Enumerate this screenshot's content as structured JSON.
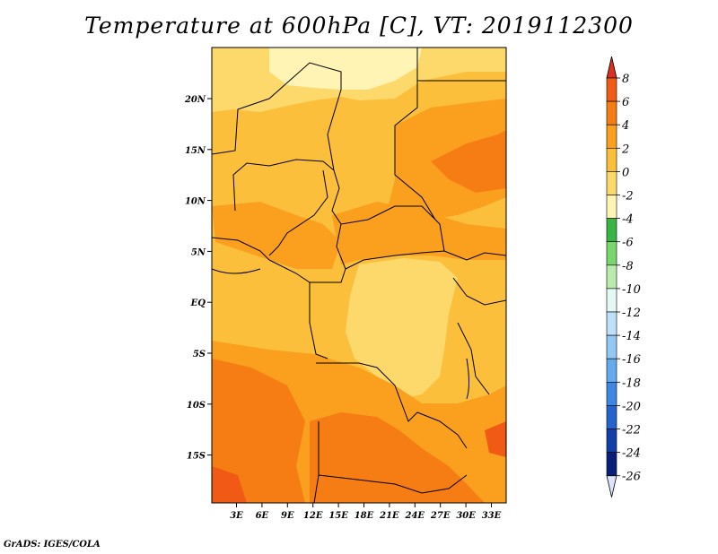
{
  "title": "Temperature at 600hPa [C], VT: 2019112300",
  "credit": "GrADS: IGES/COLA",
  "map": {
    "lat_labels": [
      "20N",
      "15N",
      "10N",
      "5N",
      "EQ",
      "5S",
      "10S",
      "15S"
    ],
    "lon_labels": [
      "3E",
      "6E",
      "9E",
      "12E",
      "15E",
      "18E",
      "21E",
      "24E",
      "27E",
      "30E",
      "33E"
    ]
  },
  "colorbar": {
    "labels": [
      "8",
      "6",
      "4",
      "2",
      "0",
      "-2",
      "-4",
      "-6",
      "-8",
      "-10",
      "-12",
      "-14",
      "-16",
      "-18",
      "-20",
      "-22",
      "-24",
      "-26"
    ],
    "colors": {
      "top_tri": "#d8321f",
      "6_to_8": "#f05a14",
      "4_to_6": "#f57d14",
      "2_to_4": "#faa01e",
      "0_to_2": "#fbbf3c",
      "-2_to_0": "#fdd96b",
      "-4_to_-2": "#fff4b3",
      "-6_to_-4": "#3ab445",
      "-8_to_-6": "#79d66c",
      "-10_to_-8": "#b9ecaa",
      "-12_to_-10": "#e4f8f4",
      "-14_to_-12": "#bfe0fb",
      "-16_to_-14": "#93c7f4",
      "-18_to_-16": "#64aaee",
      "-20_to_-18": "#3e87e3",
      "-22_to_-20": "#2563cd",
      "-24_to_-22": "#1240a8",
      "-26_to_-24": "#09207a",
      "bottom_tri": "#dde3f8"
    }
  }
}
